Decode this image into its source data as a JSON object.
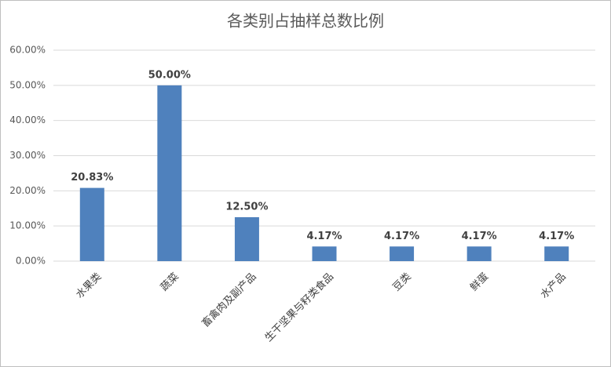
{
  "chart_data": {
    "type": "bar",
    "title": "各类别占抽样总数比例",
    "categories": [
      "水果类",
      "蔬菜",
      "畜禽肉及副产品",
      "生干坚果与籽类食品",
      "豆类",
      "鲜蛋",
      "水产品"
    ],
    "values": [
      20.83,
      50,
      12.5,
      4.17,
      4.17,
      4.17,
      4.17
    ],
    "value_labels": [
      "20.83%",
      "50.00%",
      "12.50%",
      "4.17%",
      "4.17%",
      "4.17%",
      "4.17%"
    ],
    "color": "#4f81bd",
    "ylim": [
      0,
      60
    ],
    "yticks": [
      {
        "value": 0,
        "label": "0.00%"
      },
      {
        "value": 10,
        "label": "10.00%"
      },
      {
        "value": 20,
        "label": "20.00%"
      },
      {
        "value": 30,
        "label": "30.00%"
      },
      {
        "value": 40,
        "label": "40.00%"
      },
      {
        "value": 50,
        "label": "50.00%"
      },
      {
        "value": 60,
        "label": "60.00%"
      }
    ],
    "grid": true
  }
}
